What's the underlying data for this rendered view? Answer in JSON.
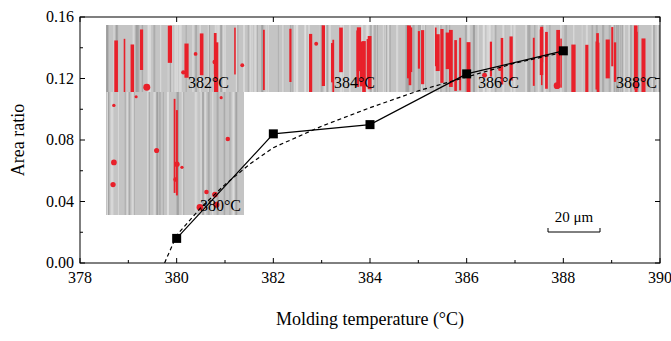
{
  "chart_data": {
    "type": "line",
    "x_label": "Molding temperature (°C)",
    "y_label": "Area ratio",
    "x": [
      380,
      382,
      384,
      386,
      388
    ],
    "series": [
      {
        "color": "#000000",
        "marker": "square",
        "line_style": "solid",
        "values": [
          0.016,
          0.084,
          0.09,
          0.123,
          0.138
        ]
      },
      {
        "color": "#000000",
        "marker": "none",
        "line_style": "dashed",
        "x": [
          379.75,
          380,
          380.5,
          381,
          381.5,
          382,
          383,
          384,
          385,
          386,
          387,
          388
        ],
        "values": [
          0,
          0.018,
          0.036,
          0.051,
          0.064,
          0.075,
          0.089,
          0.101,
          0.112,
          0.121,
          0.13,
          0.137
        ]
      }
    ],
    "xlim": [
      378,
      390
    ],
    "xticks": [
      378,
      380,
      382,
      384,
      386,
      388,
      390
    ],
    "ylim": [
      0,
      0.16
    ],
    "yticks": [
      {
        "value": 0,
        "label": "0.00"
      },
      {
        "value": 0.04,
        "label": "0.04"
      },
      {
        "value": 0.08,
        "label": "0.08"
      },
      {
        "value": 0.12,
        "label": "0.12"
      },
      {
        "value": 0.16,
        "label": "0.16"
      }
    ],
    "annotations": [
      "382°C",
      "384°C",
      "386°C",
      "388°C",
      "380°C"
    ],
    "scale_bar_label": "20 μm",
    "grid": false
  }
}
